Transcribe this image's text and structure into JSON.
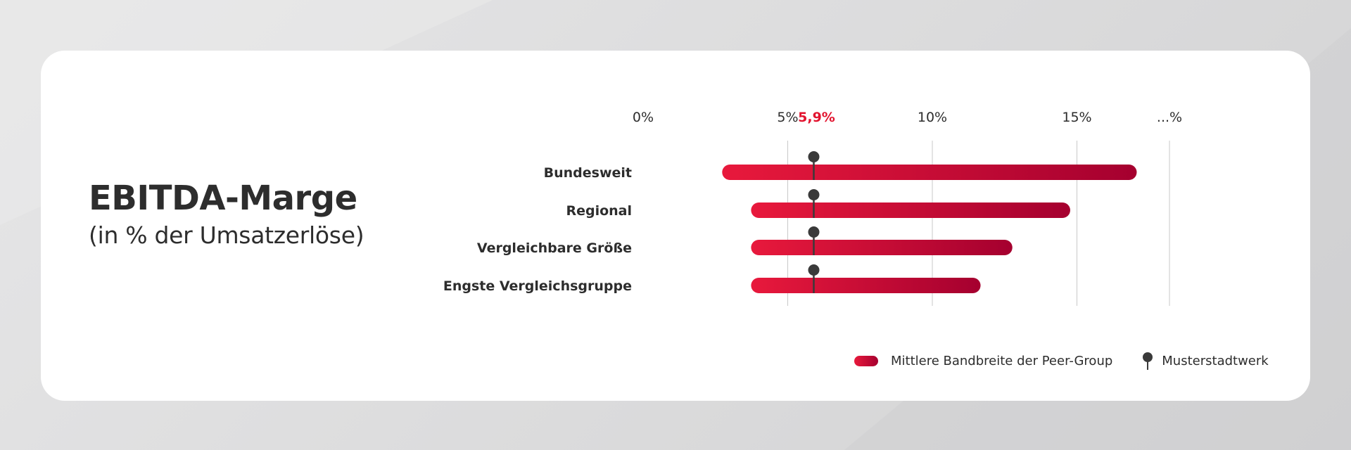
{
  "title": "EBITDA-Marge",
  "subtitle": "(in % der Umsatzerlöse)",
  "legend": {
    "range_label": "Mittlere Bandbreite der Peer-Group",
    "marker_label": "Musterstadtwerk"
  },
  "colors": {
    "bar_start": "#e8193c",
    "bar_end": "#a5002f",
    "highlight": "#e2142f",
    "marker": "#3a3a3a",
    "grid": "#c9c9c9",
    "text": "#2d2d2d"
  },
  "chart_data": {
    "type": "bar",
    "subtype": "range",
    "title": "EBITDA-Marge",
    "subtitle": "(in % der Umsatzerlöse)",
    "xlim": [
      0,
      20
    ],
    "x_ticks": [
      {
        "value": 0,
        "label": "0%"
      },
      {
        "value": 5,
        "label": "5%"
      },
      {
        "value": 10,
        "label": "10%"
      },
      {
        "value": 15,
        "label": "15%"
      },
      {
        "value": 18.2,
        "label": "...%"
      }
    ],
    "highlight_tick": {
      "value": 5.9,
      "label": "5,9%"
    },
    "grid_values": [
      5,
      10,
      15,
      18.2
    ],
    "categories": [
      "Bundesweit",
      "Regional",
      "Vergleichbare Größe",
      "Engste Vergleichsgruppe"
    ],
    "series": [
      {
        "name": "Mittlere Bandbreite der Peer-Group",
        "ranges": [
          [
            3.0,
            16.8
          ],
          [
            4.0,
            14.5
          ],
          [
            4.0,
            12.5
          ],
          [
            4.0,
            11.4
          ]
        ]
      },
      {
        "name": "Musterstadtwerk",
        "values": [
          5.9,
          5.9,
          5.9,
          5.9
        ]
      }
    ],
    "legend": "bottom-right"
  }
}
